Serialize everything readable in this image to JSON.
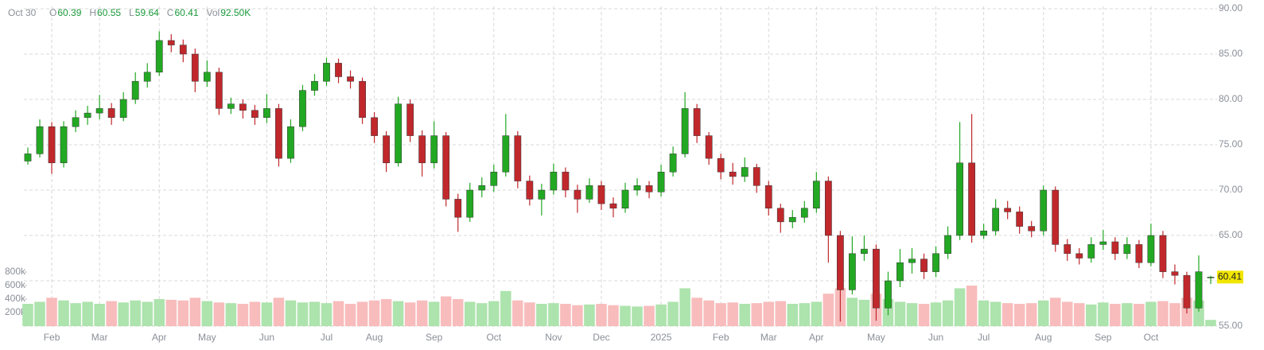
{
  "chart_data": {
    "type": "candlestick",
    "legend_items": [
      {
        "label": "O",
        "value": "60.39"
      },
      {
        "label": "H",
        "value": "60.55"
      },
      {
        "label": "L",
        "value": "59.64"
      },
      {
        "label": "C",
        "value": "60.41"
      },
      {
        "label": "Vol",
        "value": "92.50K"
      }
    ],
    "date": "Oct 30",
    "categories": [
      null,
      null,
      "Feb",
      null,
      null,
      null,
      "Mar",
      null,
      null,
      null,
      null,
      "Apr",
      null,
      null,
      null,
      "May",
      null,
      null,
      null,
      null,
      "Jun",
      null,
      null,
      null,
      null,
      "Jul",
      null,
      null,
      null,
      "Aug",
      null,
      null,
      null,
      null,
      "Sep",
      null,
      null,
      null,
      null,
      "Oct",
      null,
      null,
      null,
      null,
      "Nov",
      null,
      null,
      null,
      "Dec",
      null,
      null,
      null,
      null,
      "2025",
      null,
      null,
      null,
      null,
      "Feb",
      null,
      null,
      null,
      "Mar",
      null,
      null,
      null,
      "Apr",
      null,
      null,
      null,
      null,
      "May",
      null,
      null,
      null,
      null,
      "Jun",
      null,
      null,
      null,
      "Jul",
      null,
      null,
      null,
      null,
      "Aug",
      null,
      null,
      null,
      null,
      "Sep",
      null,
      null,
      null,
      "Oct",
      null,
      null,
      null,
      null,
      null
    ],
    "open": [
      73.2,
      74,
      77,
      73,
      77,
      78,
      78.5,
      79,
      78,
      80,
      82,
      83,
      86.5,
      86,
      85,
      82,
      83,
      79,
      79.5,
      78.8,
      78,
      79,
      73.5,
      77,
      81,
      82,
      84,
      82.5,
      82,
      78,
      76,
      73,
      79.5,
      76,
      73,
      76,
      69,
      67,
      70,
      70.5,
      72,
      76,
      71,
      69,
      70,
      72,
      70,
      69,
      70.5,
      68.5,
      68,
      70,
      70.5,
      69.8,
      72,
      74,
      79,
      76,
      73.5,
      72,
      71.5,
      72.5,
      70.5,
      68,
      66.5,
      67,
      68,
      71,
      65,
      59,
      63,
      63.5,
      57,
      60,
      62,
      62.4,
      61,
      63,
      65,
      73,
      65,
      65.5,
      68,
      67.6,
      66,
      65.5,
      70,
      64,
      63,
      62.5,
      64,
      64.3,
      63,
      64,
      62,
      65,
      61,
      60.6,
      57,
      60.39
    ],
    "high": [
      74.7,
      77.8,
      77.5,
      77.6,
      78.8,
      79.3,
      80.5,
      79.6,
      80.8,
      83,
      84,
      87.5,
      87.2,
      86.6,
      85.6,
      84.3,
      83.5,
      80.2,
      80,
      79.4,
      80.6,
      79.5,
      77.8,
      81.6,
      82.8,
      84.6,
      84.5,
      83.2,
      82.4,
      78.6,
      76.5,
      80.3,
      80,
      76.6,
      77.6,
      76.4,
      69.6,
      70.8,
      71.4,
      72.8,
      78.4,
      76.5,
      71.6,
      70.7,
      72.9,
      72.5,
      70.6,
      71.3,
      71,
      69.2,
      70.8,
      71.3,
      71,
      72.8,
      74.8,
      80.8,
      79.5,
      76.4,
      74,
      73,
      73.6,
      72.9,
      71,
      68.5,
      67.8,
      68.8,
      72,
      71.5,
      65.5,
      64.9,
      65,
      64,
      61,
      63.5,
      63.6,
      63,
      63.8,
      66,
      77.5,
      78.4,
      66.3,
      69,
      68.8,
      68.2,
      66.6,
      70.5,
      70.4,
      64.6,
      63.6,
      64.8,
      65.6,
      64.8,
      64.8,
      64.5,
      66.3,
      65.5,
      61.8,
      61,
      62.8,
      60.55
    ],
    "low": [
      72.8,
      73.6,
      71.8,
      72.5,
      76.4,
      77.2,
      77.8,
      77.2,
      77.6,
      79.5,
      81.3,
      82.6,
      85.2,
      84.1,
      80.8,
      81.4,
      78.3,
      78.4,
      77.9,
      77.2,
      77.4,
      72.6,
      73,
      76.5,
      80.4,
      81.5,
      81.8,
      81.2,
      77.3,
      75.2,
      72,
      72.6,
      75.3,
      71.5,
      72.4,
      68.2,
      65.4,
      66.5,
      69.2,
      69.8,
      71.5,
      70.2,
      68.3,
      67.2,
      69.5,
      69.2,
      67.5,
      68.6,
      67.8,
      67,
      67.5,
      69.4,
      69.1,
      69.3,
      71.5,
      73.6,
      75.2,
      72.8,
      71.2,
      70.6,
      70.9,
      69.7,
      67.2,
      65.3,
      65.8,
      66.4,
      67.5,
      62,
      55.5,
      58.5,
      62.2,
      55.6,
      56.2,
      59.3,
      60.8,
      60.2,
      60.4,
      62.4,
      64.5,
      64.2,
      64.6,
      65,
      66.8,
      65.2,
      64.8,
      65,
      63.2,
      62.2,
      61.8,
      62,
      63.4,
      62.3,
      62.4,
      61.4,
      61.6,
      60.3,
      59.6,
      56.4,
      56.6,
      59.64
    ],
    "close": [
      74,
      77,
      73,
      77,
      78,
      78.5,
      79,
      78,
      80,
      82,
      83,
      86.5,
      86,
      85,
      82,
      83,
      79,
      79.5,
      78.8,
      78,
      79,
      73.5,
      77,
      81,
      82,
      84,
      82.5,
      82,
      78,
      76,
      73,
      79.5,
      76,
      73,
      76,
      69,
      67,
      70,
      70.5,
      72,
      76,
      71,
      69,
      70,
      72,
      70,
      69,
      70.5,
      68.5,
      68,
      70,
      70.5,
      69.8,
      72,
      74,
      79,
      76,
      73.5,
      72,
      71.5,
      72.5,
      70.5,
      68,
      66.5,
      67,
      68,
      71,
      65,
      59,
      63,
      63.5,
      57,
      60,
      62,
      62.4,
      61,
      63,
      65,
      73,
      65,
      65.5,
      68,
      67.6,
      66,
      65.5,
      70,
      64,
      63,
      62.5,
      64,
      64.3,
      63,
      64,
      62,
      65,
      61,
      60.6,
      57,
      61,
      60.41
    ],
    "volume": [
      330000,
      360000,
      420000,
      380000,
      340000,
      360000,
      330000,
      370000,
      350000,
      380000,
      360000,
      400000,
      390000,
      380000,
      420000,
      370000,
      350000,
      340000,
      330000,
      360000,
      350000,
      420000,
      380000,
      350000,
      360000,
      340000,
      370000,
      330000,
      360000,
      380000,
      400000,
      370000,
      350000,
      380000,
      360000,
      440000,
      400000,
      360000,
      340000,
      370000,
      520000,
      380000,
      350000,
      330000,
      340000,
      330000,
      310000,
      320000,
      330000,
      310000,
      300000,
      290000,
      300000,
      320000,
      360000,
      560000,
      420000,
      380000,
      340000,
      350000,
      330000,
      340000,
      360000,
      370000,
      330000,
      340000,
      360000,
      480000,
      560000,
      420000,
      390000,
      480000,
      400000,
      360000,
      340000,
      330000,
      350000,
      380000,
      560000,
      600000,
      380000,
      360000,
      340000,
      330000,
      340000,
      380000,
      420000,
      360000,
      340000,
      320000,
      350000,
      330000,
      340000,
      330000,
      360000,
      370000,
      340000,
      420000,
      380000,
      92500
    ],
    "ylim": [
      55,
      90
    ],
    "yticks": [
      {
        "value": 55,
        "label": "55.00"
      },
      {
        "value": 60,
        "label": "60.00"
      },
      {
        "value": 65,
        "label": "65.00"
      },
      {
        "value": 70,
        "label": "70.00"
      },
      {
        "value": 75,
        "label": "75.00"
      },
      {
        "value": 80,
        "label": "80.00"
      },
      {
        "value": 85,
        "label": "85.00"
      },
      {
        "value": 90,
        "label": "90.00"
      }
    ],
    "y2lim": [
      0,
      800000
    ],
    "y2ticks": [
      {
        "value": 200000,
        "label": "200k"
      },
      {
        "value": 400000,
        "label": "400k"
      },
      {
        "value": 600000,
        "label": "600k"
      },
      {
        "value": 800000,
        "label": "800k"
      }
    ],
    "grid": true,
    "up_color": "#22a822",
    "down_color": "#c0282c",
    "up_volume_color": "#ade3ad",
    "down_volume_color": "#f8bcbc",
    "last_price_color": "#f2e600"
  }
}
